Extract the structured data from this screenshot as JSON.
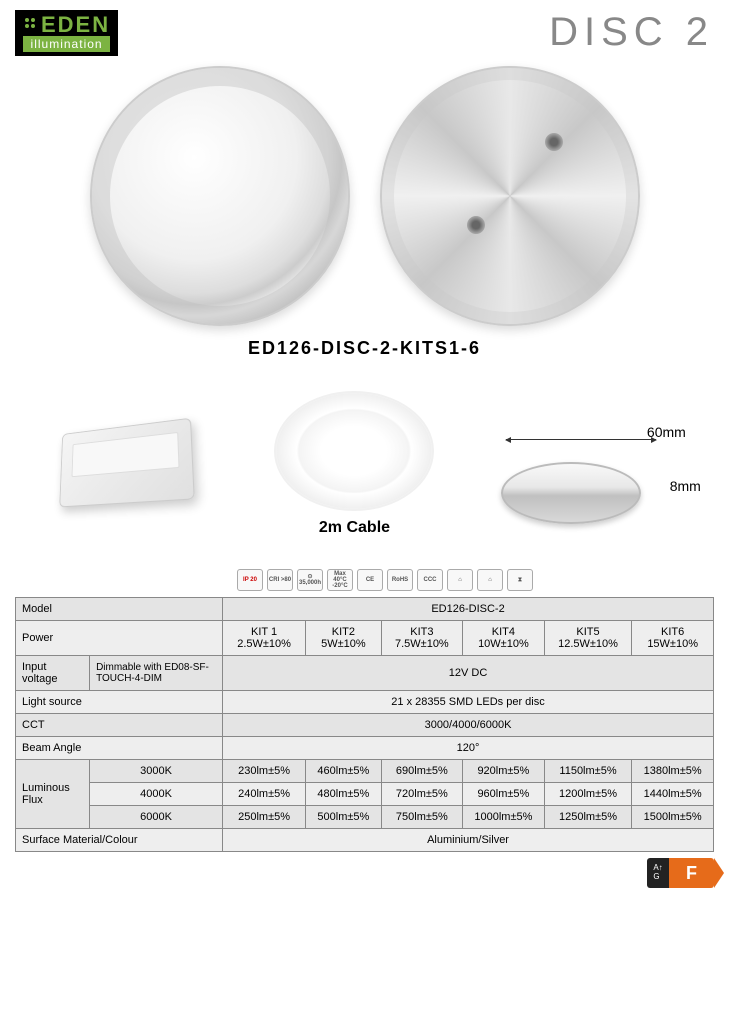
{
  "logo": {
    "top": "EDEN",
    "bottom": "illumination"
  },
  "title": "DISC 2",
  "partNumber": "ED126-DISC-2-KITS1-6",
  "cableLabel": "2m Cable",
  "dimensions": {
    "width": "60mm",
    "height": "8mm"
  },
  "certs": [
    "IP 20",
    "CRI >80",
    "⊙ 35,000h",
    "Max 40°C -20°C",
    "CE",
    "RoHS",
    "CCC",
    "⌂",
    "⌂",
    "⧗"
  ],
  "table": {
    "rows": [
      {
        "label": "Model",
        "span": 6,
        "value": "ED126-DISC-2"
      },
      {
        "label": "Power",
        "cells": [
          "KIT 1 2.5W±10%",
          "KIT2 5W±10%",
          "KIT3 7.5W±10%",
          "KIT4 10W±10%",
          "KIT5 12.5W±10%",
          "KIT6 15W±10%"
        ]
      },
      {
        "label": "Input voltage",
        "sublabel": "Dimmable with ED08-SF-TOUCH-4-DIM",
        "span": 6,
        "value": "12V DC"
      },
      {
        "label": "Light source",
        "span": 7,
        "value": "21 x 28355 SMD LEDs per disc"
      },
      {
        "label": "CCT",
        "span": 7,
        "value": "3000/4000/6000K"
      },
      {
        "label": "Beam Angle",
        "span": 7,
        "value": "120°"
      }
    ],
    "lumen": {
      "label": "Luminous Flux",
      "rows": [
        {
          "k": "3000K",
          "v": [
            "230lm±5%",
            "460lm±5%",
            "690lm±5%",
            "920lm±5%",
            "1150lm±5%",
            "1380lm±5%"
          ]
        },
        {
          "k": "4000K",
          "v": [
            "240lm±5%",
            "480lm±5%",
            "720lm±5%",
            "960lm±5%",
            "1200lm±5%",
            "1440lm±5%"
          ]
        },
        {
          "k": "6000K",
          "v": [
            "250lm±5%",
            "500lm±5%",
            "750lm±5%",
            "1000lm±5%",
            "1250lm±5%",
            "1500lm±5%"
          ]
        }
      ]
    },
    "material": {
      "label": "Surface  Material/Colour",
      "value": "Aluminium/Silver"
    }
  },
  "energy": {
    "range": "A↑\nG",
    "grade": "F"
  },
  "colors": {
    "logoBg": "#000000",
    "logoGreen": "#7cb342",
    "titleGray": "#888888",
    "energyOrange": "#e66b1a",
    "tableBorder": "#888888"
  }
}
